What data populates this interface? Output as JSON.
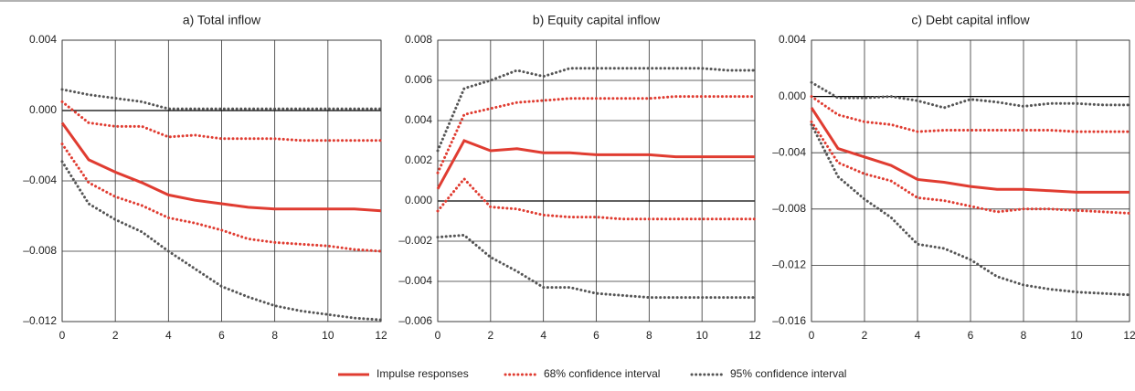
{
  "chart_data": [
    {
      "type": "line",
      "title": "a) Total inflow",
      "x": [
        0,
        1,
        2,
        3,
        4,
        5,
        6,
        7,
        8,
        9,
        10,
        11,
        12
      ],
      "xlim": [
        0,
        12
      ],
      "xticks": [
        0,
        2,
        4,
        6,
        8,
        10,
        12
      ],
      "ylim": [
        -0.012,
        0.004
      ],
      "yticks": [
        {
          "value": -0.012,
          "label": "–0.012"
        },
        {
          "value": -0.008,
          "label": "–0.008"
        },
        {
          "value": -0.004,
          "label": "–0.004"
        },
        {
          "value": 0,
          "label": "0.000"
        },
        0.004
      ],
      "grid": true,
      "series": [
        {
          "name": "Impulse responses",
          "color": "#e03c31",
          "style": "solid",
          "values": [
            -0.0007,
            -0.0028,
            -0.0035,
            -0.0041,
            -0.0048,
            -0.0051,
            -0.0053,
            -0.0055,
            -0.0056,
            -0.0056,
            -0.0056,
            -0.0056,
            -0.0057
          ]
        },
        {
          "name": "68% confidence interval",
          "color": "#e03c31",
          "style": "dotted",
          "values": [
            0.0005,
            -0.0007,
            -0.0009,
            -0.0009,
            -0.0015,
            -0.0014,
            -0.0016,
            -0.0016,
            -0.0016,
            -0.0017,
            -0.0017,
            -0.0017,
            -0.0017
          ]
        },
        {
          "name": "68% confidence interval",
          "color": "#e03c31",
          "style": "dotted",
          "values": [
            -0.0019,
            -0.0041,
            -0.0049,
            -0.0054,
            -0.0061,
            -0.0064,
            -0.0068,
            -0.0073,
            -0.0075,
            -0.0076,
            -0.0077,
            -0.0079,
            -0.008
          ]
        },
        {
          "name": "95% confidence interval",
          "color": "#555555",
          "style": "dotted",
          "values": [
            0.0012,
            0.0009,
            0.0007,
            0.0005,
            0.0001,
            0.0001,
            0.0001,
            0.0001,
            0.0001,
            0.0001,
            0.0001,
            0.0001,
            0.0001
          ]
        },
        {
          "name": "95% confidence interval",
          "color": "#555555",
          "style": "dotted",
          "values": [
            -0.0029,
            -0.0053,
            -0.0062,
            -0.0069,
            -0.008,
            -0.009,
            -0.01,
            -0.0106,
            -0.0111,
            -0.0114,
            -0.0116,
            -0.0118,
            -0.0119
          ]
        }
      ]
    },
    {
      "type": "line",
      "title": "b) Equity capital inflow",
      "x": [
        0,
        1,
        2,
        3,
        4,
        5,
        6,
        7,
        8,
        9,
        10,
        11,
        12
      ],
      "xlim": [
        0,
        12
      ],
      "xticks": [
        0,
        2,
        4,
        6,
        8,
        10,
        12
      ],
      "ylim": [
        -0.006,
        0.008
      ],
      "yticks": [
        {
          "value": -0.006,
          "label": "–0.006"
        },
        {
          "value": -0.004,
          "label": "–0.004"
        },
        {
          "value": -0.002,
          "label": "–0.002"
        },
        {
          "value": 0,
          "label": "0.000"
        },
        0.002,
        0.004,
        0.006,
        0.008
      ],
      "grid": true,
      "series": [
        {
          "name": "Impulse responses",
          "color": "#e03c31",
          "style": "solid",
          "values": [
            0.0006,
            0.003,
            0.0025,
            0.0026,
            0.0024,
            0.0024,
            0.0023,
            0.0023,
            0.0023,
            0.0022,
            0.0022,
            0.0022,
            0.0022
          ]
        },
        {
          "name": "68% confidence interval",
          "color": "#e03c31",
          "style": "dotted",
          "values": [
            0.0014,
            0.0043,
            0.0046,
            0.0049,
            0.005,
            0.0051,
            0.0051,
            0.0051,
            0.0051,
            0.0052,
            0.0052,
            0.0052,
            0.0052
          ]
        },
        {
          "name": "68% confidence interval",
          "color": "#e03c31",
          "style": "dotted",
          "values": [
            -0.0005,
            0.0011,
            -0.0003,
            -0.0004,
            -0.0007,
            -0.0008,
            -0.0008,
            -0.0009,
            -0.0009,
            -0.0009,
            -0.0009,
            -0.0009,
            -0.0009
          ]
        },
        {
          "name": "95% confidence interval",
          "color": "#555555",
          "style": "dotted",
          "values": [
            0.0025,
            0.0056,
            0.006,
            0.0065,
            0.0062,
            0.0066,
            0.0066,
            0.0066,
            0.0066,
            0.0066,
            0.0066,
            0.0065,
            0.0065
          ]
        },
        {
          "name": "95% confidence interval",
          "color": "#555555",
          "style": "dotted",
          "values": [
            -0.0018,
            -0.0017,
            -0.0028,
            -0.0035,
            -0.0043,
            -0.0043,
            -0.0046,
            -0.0047,
            -0.0048,
            -0.0048,
            -0.0048,
            -0.0048,
            -0.0048
          ]
        }
      ]
    },
    {
      "type": "line",
      "title": "c) Debt capital inflow",
      "x": [
        0,
        1,
        2,
        3,
        4,
        5,
        6,
        7,
        8,
        9,
        10,
        11,
        12
      ],
      "xlim": [
        0,
        12
      ],
      "xticks": [
        0,
        2,
        4,
        6,
        8,
        10,
        12
      ],
      "ylim": [
        -0.016,
        0.004
      ],
      "yticks": [
        {
          "value": -0.016,
          "label": "–0.016"
        },
        {
          "value": -0.012,
          "label": "–0.012"
        },
        {
          "value": -0.008,
          "label": "–0.008"
        },
        {
          "value": -0.004,
          "label": "–0.004"
        },
        {
          "value": 0,
          "label": "0.000"
        },
        0.004
      ],
      "grid": true,
      "series": [
        {
          "name": "Impulse responses",
          "color": "#e03c31",
          "style": "solid",
          "values": [
            -0.0008,
            -0.0037,
            -0.0043,
            -0.0049,
            -0.0059,
            -0.0061,
            -0.0064,
            -0.0066,
            -0.0066,
            -0.0067,
            -0.0068,
            -0.0068,
            -0.0068
          ]
        },
        {
          "name": "68% confidence interval",
          "color": "#e03c31",
          "style": "dotted",
          "values": [
            0,
            -0.0013,
            -0.0018,
            -0.002,
            -0.0025,
            -0.0024,
            -0.0024,
            -0.0024,
            -0.0024,
            -0.0024,
            -0.0025,
            -0.0025,
            -0.0025
          ]
        },
        {
          "name": "68% confidence interval",
          "color": "#e03c31",
          "style": "dotted",
          "values": [
            -0.0018,
            -0.0047,
            -0.0055,
            -0.006,
            -0.0072,
            -0.0074,
            -0.0078,
            -0.0082,
            -0.008,
            -0.008,
            -0.0081,
            -0.0082,
            -0.0083
          ]
        },
        {
          "name": "95% confidence interval",
          "color": "#555555",
          "style": "dotted",
          "values": [
            0.001,
            -0.0001,
            -0.0001,
            0,
            -0.0003,
            -0.0008,
            -0.0002,
            -0.0004,
            -0.0007,
            -0.0005,
            -0.0005,
            -0.0006,
            -0.0006
          ]
        },
        {
          "name": "95% confidence interval",
          "color": "#555555",
          "style": "dotted",
          "values": [
            -0.002,
            -0.0057,
            -0.0073,
            -0.0086,
            -0.0105,
            -0.0108,
            -0.0116,
            -0.0128,
            -0.0134,
            -0.0137,
            -0.0139,
            -0.014,
            -0.0141
          ]
        }
      ]
    }
  ]
}
